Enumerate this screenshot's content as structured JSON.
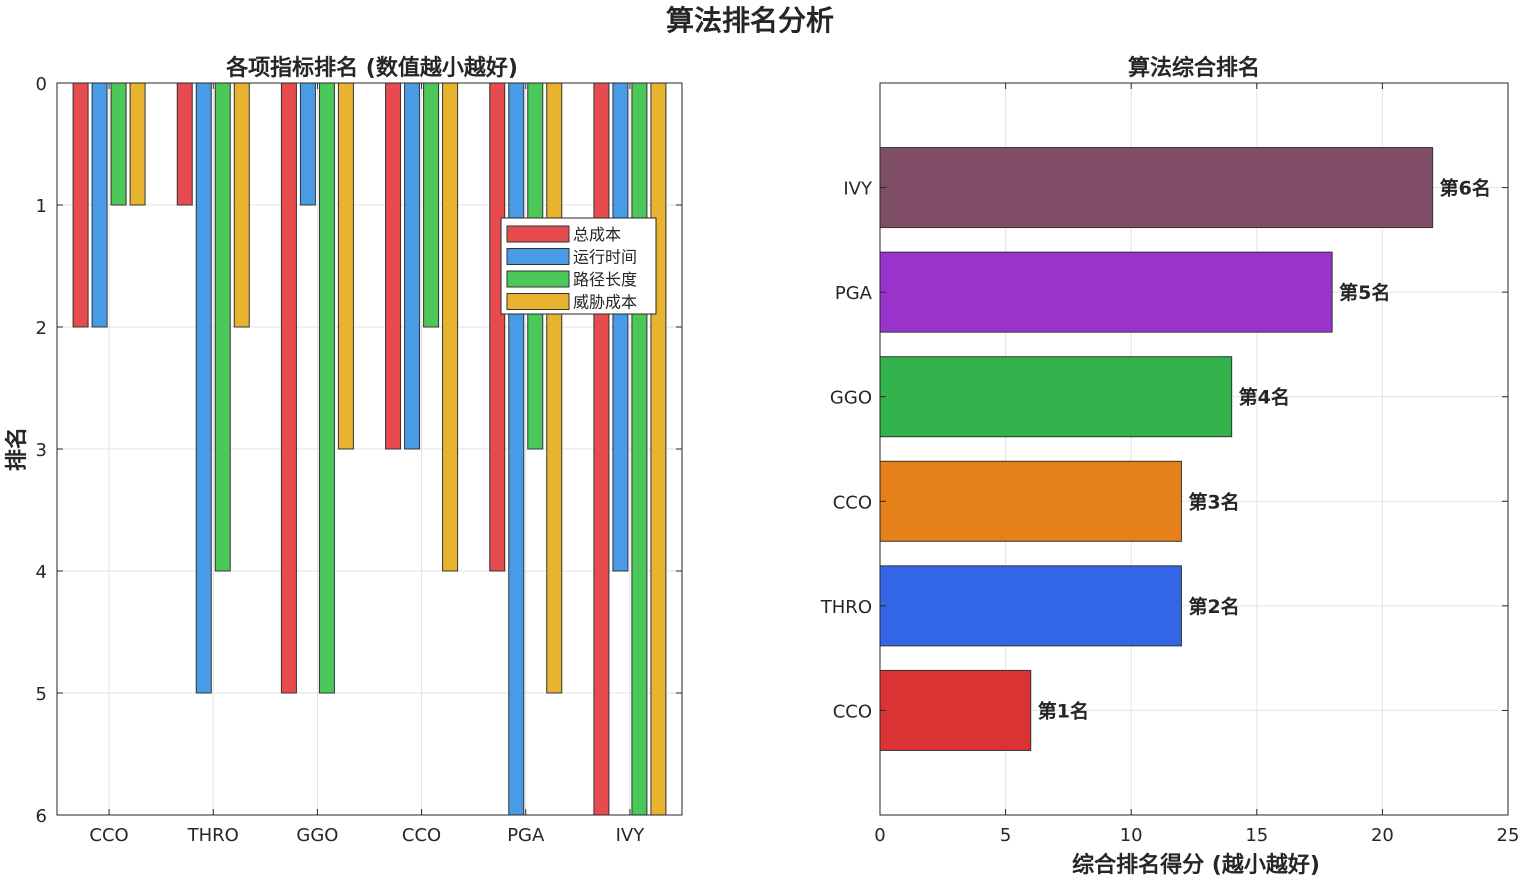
{
  "figure": {
    "title": "算法排名分析"
  },
  "chart_data": [
    {
      "type": "bar",
      "title": "各项指标排名 (数值越小越好)",
      "xlabel": "",
      "ylabel": "排名",
      "ylim": [
        0,
        6
      ],
      "y_reversed": true,
      "y_ticks": [
        0,
        1,
        2,
        3,
        4,
        5,
        6
      ],
      "grid": true,
      "legend_position": "top-right",
      "categories": [
        "CCO",
        "THRO",
        "GGO",
        "CCO",
        "PGA",
        "IVY"
      ],
      "series": [
        {
          "name": "总成本",
          "color": "#e64b4e",
          "values": [
            2,
            1,
            5,
            3,
            4,
            6
          ]
        },
        {
          "name": "运行时间",
          "color": "#4a9be6",
          "values": [
            2,
            5,
            1,
            3,
            6,
            4
          ]
        },
        {
          "name": "路径长度",
          "color": "#4cc75a",
          "values": [
            1,
            4,
            5,
            2,
            3,
            6
          ]
        },
        {
          "name": "威胁成本",
          "color": "#e8b430",
          "values": [
            1,
            2,
            3,
            4,
            5,
            6
          ]
        }
      ]
    },
    {
      "type": "bar",
      "orientation": "horizontal",
      "title": "算法综合排名",
      "xlabel": "综合排名得分 (越小越好)",
      "ylabel": "",
      "xlim": [
        0,
        25
      ],
      "x_ticks": [
        0,
        5,
        10,
        15,
        20,
        25
      ],
      "grid": true,
      "categories": [
        "CCO",
        "THRO",
        "CCO",
        "GGO",
        "PGA",
        "IVY"
      ],
      "values": [
        6,
        12,
        12,
        14,
        18,
        22
      ],
      "colors": [
        "#d93333",
        "#3366e6",
        "#e68019",
        "#33b34c",
        "#9933cc",
        "#804d66"
      ],
      "labels": [
        "第1名",
        "第2名",
        "第3名",
        "第4名",
        "第5名",
        "第6名"
      ]
    }
  ]
}
